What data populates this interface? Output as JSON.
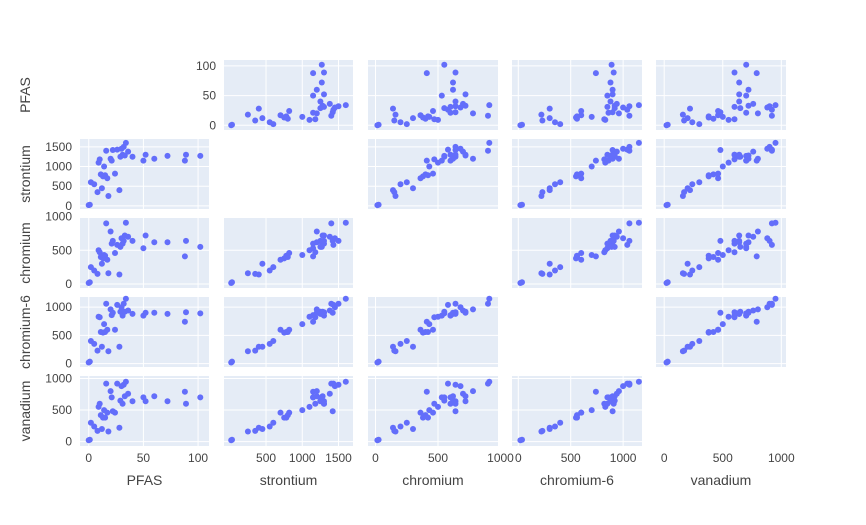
{
  "chart_data": {
    "type": "scatter",
    "subtype": "scatter-matrix",
    "variables": [
      "PFAS",
      "strontium",
      "chromium",
      "chromium-6",
      "vanadium"
    ],
    "diagonal_visible": false,
    "marker_color": "#636efa",
    "background_color": "#e5ecf6",
    "grid": true,
    "axes": {
      "PFAS": {
        "range": [
          -8,
          110
        ],
        "ticks": [
          0,
          50,
          100
        ],
        "tick_labels": [
          "0",
          "50",
          "100"
        ]
      },
      "strontium": {
        "range": [
          -80,
          1700
        ],
        "ticks": [
          0,
          500,
          1000,
          1500
        ],
        "tick_labels": [
          "0",
          "500",
          "1000",
          "1500"
        ],
        "y_ticks": [
          0,
          500,
          1000,
          1500
        ],
        "y_tick_labels": [
          "0",
          "500",
          "1000",
          "1500"
        ],
        "x_ticks": [
          500,
          1000,
          1500
        ],
        "x_tick_labels": [
          "500",
          "1000",
          "1500"
        ]
      },
      "chromium": {
        "range": [
          -60,
          980
        ],
        "ticks": [
          0,
          500,
          1000
        ],
        "tick_labels": [
          "0",
          "500",
          "1000"
        ],
        "x_ticks": [
          0,
          500,
          1000
        ],
        "x_tick_labels": [
          "0",
          "500",
          "1000"
        ]
      },
      "chromium-6": {
        "range": [
          -60,
          1180
        ],
        "ticks": [
          0,
          500,
          1000
        ],
        "tick_labels": [
          "0",
          "500",
          "1000"
        ],
        "x_ticks": [
          0,
          500,
          1000
        ],
        "x_tick_labels": [
          "0",
          "500",
          "1000"
        ]
      },
      "vanadium": {
        "range": [
          -70,
          1040
        ],
        "ticks": [
          0,
          500,
          1000
        ],
        "tick_labels": [
          "0",
          "500",
          "1000"
        ],
        "x_ticks": [
          0,
          500,
          1000
        ],
        "x_tick_labels": [
          "0",
          "500",
          "1000"
        ]
      }
    },
    "points": [
      {
        "PFAS": 0,
        "strontium": 20,
        "chromium": 15,
        "chromium-6": 20,
        "vanadium": 20
      },
      {
        "PFAS": 1,
        "strontium": 30,
        "chromium": 25,
        "chromium-6": 35,
        "vanadium": 30
      },
      {
        "PFAS": 2,
        "strontium": 600,
        "chromium": 250,
        "chromium-6": 400,
        "vanadium": 300
      },
      {
        "PFAS": 5,
        "strontium": 550,
        "chromium": 200,
        "chromium-6": 350,
        "vanadium": 240
      },
      {
        "PFAS": 8,
        "strontium": 350,
        "chromium": 150,
        "chromium-6": 230,
        "vanadium": 170
      },
      {
        "PFAS": 9,
        "strontium": 1100,
        "chromium": 500,
        "chromium-6": 830,
        "vanadium": 550
      },
      {
        "PFAS": 10,
        "strontium": 1180,
        "chromium": 470,
        "chromium-6": 820,
        "vanadium": 600
      },
      {
        "PFAS": 11,
        "strontium": 800,
        "chromium": 400,
        "chromium-6": 560,
        "vanadium": 420
      },
      {
        "PFAS": 12,
        "strontium": 450,
        "chromium": 300,
        "chromium-6": 300,
        "vanadium": 200
      },
      {
        "PFAS": 13,
        "strontium": 750,
        "chromium": 380,
        "chromium-6": 550,
        "vanadium": 380
      },
      {
        "PFAS": 14,
        "strontium": 1000,
        "chromium": 430,
        "chromium-6": 700,
        "vanadium": 500
      },
      {
        "PFAS": 15,
        "strontium": 780,
        "chromium": 420,
        "chromium-6": 560,
        "vanadium": 380
      },
      {
        "PFAS": 16,
        "strontium": 1400,
        "chromium": 900,
        "chromium-6": 1060,
        "vanadium": 920
      },
      {
        "PFAS": 17,
        "strontium": 700,
        "chromium": 360,
        "chromium-6": 600,
        "vanadium": 460
      },
      {
        "PFAS": 18,
        "strontium": 250,
        "chromium": 160,
        "chromium-6": 220,
        "vanadium": 160
      },
      {
        "PFAS": 20,
        "strontium": 1200,
        "chromium": 780,
        "chromium-6": 960,
        "vanadium": 800
      },
      {
        "PFAS": 21,
        "strontium": 1150,
        "chromium": 600,
        "chromium-6": 860,
        "vanadium": 700
      },
      {
        "PFAS": 22,
        "strontium": 1420,
        "chromium": 640,
        "chromium-6": 900,
        "vanadium": 480
      },
      {
        "PFAS": 24,
        "strontium": 820,
        "chromium": 460,
        "chromium-6": 600,
        "vanadium": 460
      },
      {
        "PFAS": 26,
        "strontium": 1430,
        "chromium": 580,
        "chromium-6": 1040,
        "vanadium": 920
      },
      {
        "PFAS": 28,
        "strontium": 400,
        "chromium": 140,
        "chromium-6": 300,
        "vanadium": 220
      },
      {
        "PFAS": 29,
        "strontium": 1250,
        "chromium": 550,
        "chromium-6": 920,
        "vanadium": 650
      },
      {
        "PFAS": 30,
        "strontium": 1450,
        "chromium": 680,
        "chromium-6": 1000,
        "vanadium": 880
      },
      {
        "PFAS": 31,
        "strontium": 1300,
        "chromium": 600,
        "chromium-6": 850,
        "vanadium": 600
      },
      {
        "PFAS": 32,
        "strontium": 1500,
        "chromium": 640,
        "chromium-6": 1060,
        "vanadium": 900
      },
      {
        "PFAS": 33,
        "strontium": 1280,
        "chromium": 720,
        "chromium-6": 920,
        "vanadium": 720
      },
      {
        "PFAS": 34,
        "strontium": 1600,
        "chromium": 910,
        "chromium-6": 1150,
        "vanadium": 950
      },
      {
        "PFAS": 36,
        "strontium": 1380,
        "chromium": 700,
        "chromium-6": 940,
        "vanadium": 760
      },
      {
        "PFAS": 40,
        "strontium": 1250,
        "chromium": 640,
        "chromium-6": 880,
        "vanadium": 640
      },
      {
        "PFAS": 50,
        "strontium": 1150,
        "chromium": 530,
        "chromium-6": 850,
        "vanadium": 700
      },
      {
        "PFAS": 52,
        "strontium": 1300,
        "chromium": 720,
        "chromium-6": 900,
        "vanadium": 640
      },
      {
        "PFAS": 60,
        "strontium": 1200,
        "chromium": 620,
        "chromium-6": 900,
        "vanadium": 720
      },
      {
        "PFAS": 72,
        "strontium": 1270,
        "chromium": 620,
        "chromium-6": 880,
        "vanadium": 640
      },
      {
        "PFAS": 88,
        "strontium": 1150,
        "chromium": 410,
        "chromium-6": 740,
        "vanadium": 790
      },
      {
        "PFAS": 89,
        "strontium": 1300,
        "chromium": 640,
        "chromium-6": 910,
        "vanadium": 600
      },
      {
        "PFAS": 102,
        "strontium": 1270,
        "chromium": 550,
        "chromium-6": 890,
        "vanadium": 700
      }
    ]
  }
}
